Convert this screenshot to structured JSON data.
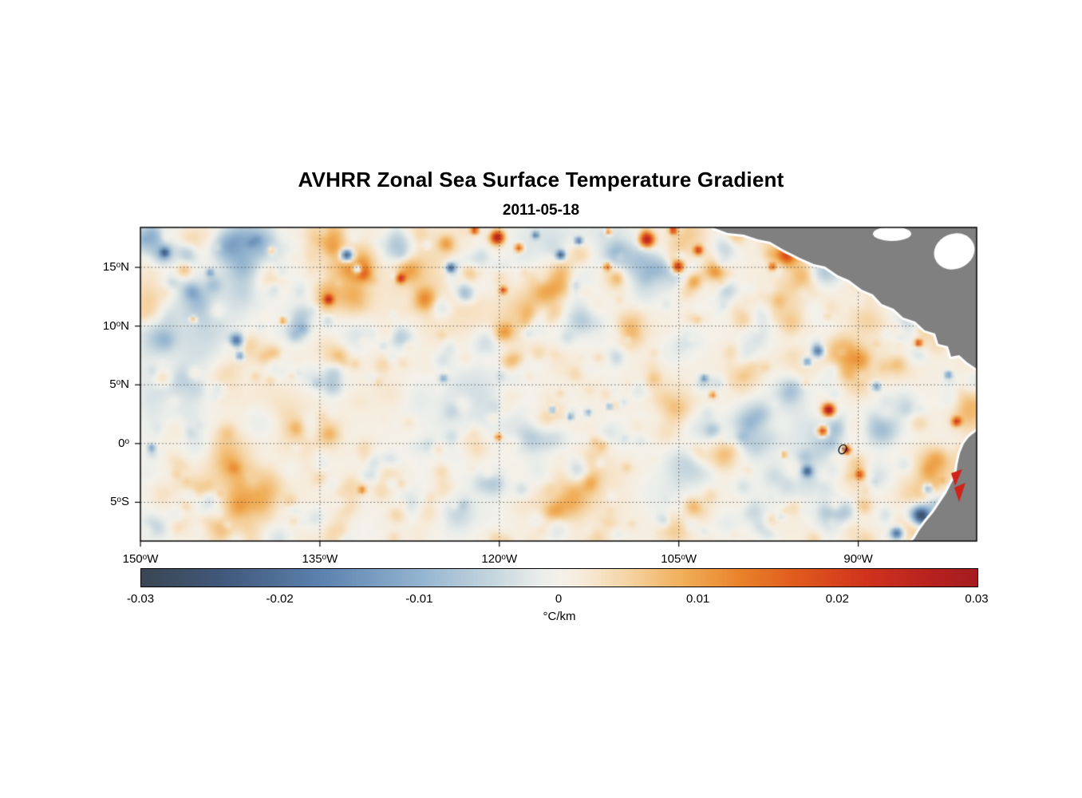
{
  "chart_data": {
    "type": "heatmap",
    "title": "AVHRR Zonal Sea Surface Temperature Gradient",
    "subtitle": "2011-05-18",
    "units": "°C/km",
    "variable": "zonal sea surface temperature gradient",
    "grid": "dotted",
    "land_color": "#808080",
    "background_value": 0.0008,
    "x_axis": {
      "min_lon_w": 150,
      "max_lon_w": 80.1,
      "ticks": [
        {
          "lon": 150,
          "text": "150",
          "hemi": "W"
        },
        {
          "lon": 135,
          "text": "135",
          "hemi": "W"
        },
        {
          "lon": 120,
          "text": "120",
          "hemi": "W"
        },
        {
          "lon": 105,
          "text": "105",
          "hemi": "W"
        },
        {
          "lon": 90,
          "text": "90",
          "hemi": "W"
        }
      ]
    },
    "y_axis": {
      "min_lat": -8.3,
      "max_lat": 18.4,
      "ticks": [
        {
          "lat": 15,
          "text": "15",
          "hemi": "N"
        },
        {
          "lat": 10,
          "text": "10",
          "hemi": "N"
        },
        {
          "lat": 5,
          "text": "5",
          "hemi": "N"
        },
        {
          "lat": 0,
          "text": "0",
          "hemi": ""
        },
        {
          "lat": -5,
          "text": "5",
          "hemi": "S"
        }
      ]
    },
    "colorbar": {
      "min": -0.03,
      "max": 0.03,
      "tick_labels": [
        "-0.03",
        "-0.02",
        "-0.01",
        "0",
        "0.01",
        "0.02",
        "0.03"
      ],
      "units": "°C/km",
      "stops": [
        {
          "v": -0.03,
          "c": "#3a4653"
        },
        {
          "v": -0.024,
          "c": "#41597c"
        },
        {
          "v": -0.017,
          "c": "#5c82ae"
        },
        {
          "v": -0.01,
          "c": "#93b4d0"
        },
        {
          "v": -0.005,
          "c": "#c3d4dd"
        },
        {
          "v": -0.0015,
          "c": "#e9edea"
        },
        {
          "v": 0,
          "c": "#f4f1ea"
        },
        {
          "v": 0.0015,
          "c": "#f6ecdc"
        },
        {
          "v": 0.005,
          "c": "#f5d3a2"
        },
        {
          "v": 0.009,
          "c": "#f0ad56"
        },
        {
          "v": 0.013,
          "c": "#e9822a"
        },
        {
          "v": 0.017,
          "c": "#e05a1d"
        },
        {
          "v": 0.022,
          "c": "#d0331d"
        },
        {
          "v": 0.027,
          "c": "#b5211f"
        },
        {
          "v": 0.03,
          "c": "#a51c20"
        }
      ]
    },
    "noise": {
      "seed": 20110518,
      "large": 70,
      "medium": 380,
      "small": 600
    },
    "features": [
      {
        "lon": 120.3,
        "lat": 17.7,
        "amp": 0.028,
        "r": 9
      },
      {
        "lon": 118.5,
        "lat": 16.8,
        "amp": 0.02,
        "r": 6
      },
      {
        "lon": 107.8,
        "lat": 17.5,
        "amp": 0.028,
        "r": 10
      },
      {
        "lon": 105.2,
        "lat": 15.2,
        "amp": 0.026,
        "r": 8
      },
      {
        "lon": 103.5,
        "lat": 16.6,
        "amp": 0.02,
        "r": 6
      },
      {
        "lon": 111.1,
        "lat": 15.2,
        "amp": 0.016,
        "r": 5
      },
      {
        "lon": 115.0,
        "lat": 16.2,
        "amp": -0.024,
        "r": 6
      },
      {
        "lon": 113.5,
        "lat": 17.4,
        "amp": -0.02,
        "r": 5
      },
      {
        "lon": 124.2,
        "lat": 15.1,
        "amp": -0.022,
        "r": 6
      },
      {
        "lon": 132.9,
        "lat": 16.2,
        "amp": -0.026,
        "r": 8
      },
      {
        "lon": 132.0,
        "lat": 15.0,
        "amp": -0.02,
        "r": 6
      },
      {
        "lon": 128.4,
        "lat": 14.2,
        "amp": 0.02,
        "r": 6
      },
      {
        "lon": 134.4,
        "lat": 12.4,
        "amp": 0.018,
        "r": 6
      },
      {
        "lon": 119.8,
        "lat": 13.2,
        "amp": 0.02,
        "r": 4
      },
      {
        "lon": 142.1,
        "lat": 8.9,
        "amp": -0.02,
        "r": 9
      },
      {
        "lon": 141.8,
        "lat": 7.6,
        "amp": -0.016,
        "r": 6
      },
      {
        "lon": 138.2,
        "lat": 10.6,
        "amp": 0.012,
        "r": 5
      },
      {
        "lon": 145.7,
        "lat": 10.7,
        "amp": 0.012,
        "r": 4
      },
      {
        "lon": 148.1,
        "lat": 16.4,
        "amp": -0.016,
        "r": 6
      },
      {
        "lon": 139.2,
        "lat": 16.6,
        "amp": 0.012,
        "r": 5
      },
      {
        "lon": 144.3,
        "lat": 14.7,
        "amp": -0.012,
        "r": 5
      },
      {
        "lon": 122.2,
        "lat": 18.3,
        "amp": 0.02,
        "r": 5
      },
      {
        "lon": 117.1,
        "lat": 17.9,
        "amp": -0.018,
        "r": 4
      },
      {
        "lon": 111.0,
        "lat": 18.2,
        "amp": 0.016,
        "r": 4
      },
      {
        "lon": 105.6,
        "lat": 18.3,
        "amp": 0.02,
        "r": 5
      },
      {
        "lon": 97.3,
        "lat": 15.2,
        "amp": 0.016,
        "r": 5
      },
      {
        "lon": 93.5,
        "lat": 8.0,
        "amp": -0.02,
        "r": 8
      },
      {
        "lon": 94.4,
        "lat": 7.1,
        "amp": -0.016,
        "r": 6
      },
      {
        "lon": 92.6,
        "lat": 3.0,
        "amp": 0.03,
        "r": 8
      },
      {
        "lon": 93.1,
        "lat": 1.2,
        "amp": 0.026,
        "r": 7
      },
      {
        "lon": 91.1,
        "lat": -0.4,
        "amp": 0.03,
        "r": 5
      },
      {
        "lon": 90.0,
        "lat": -2.5,
        "amp": 0.016,
        "r": 6
      },
      {
        "lon": 94.4,
        "lat": -2.2,
        "amp": -0.02,
        "r": 7
      },
      {
        "lon": 120.2,
        "lat": 0.7,
        "amp": 0.015,
        "r": 5
      },
      {
        "lon": 115.7,
        "lat": 3.0,
        "amp": -0.016,
        "r": 4
      },
      {
        "lon": 114.2,
        "lat": 2.4,
        "amp": -0.014,
        "r": 4
      },
      {
        "lon": 112.7,
        "lat": 2.8,
        "amp": -0.012,
        "r": 4
      },
      {
        "lon": 110.9,
        "lat": 3.3,
        "amp": -0.013,
        "r": 4
      },
      {
        "lon": 103.0,
        "lat": 5.7,
        "amp": -0.014,
        "r": 4
      },
      {
        "lon": 102.3,
        "lat": 4.3,
        "amp": 0.013,
        "r": 4
      },
      {
        "lon": 85.1,
        "lat": 8.7,
        "amp": 0.02,
        "r": 5
      },
      {
        "lon": 81.9,
        "lat": 2.0,
        "amp": 0.02,
        "r": 6
      },
      {
        "lon": 81.0,
        "lat": -3.7,
        "amp": 0.035,
        "r": 7
      },
      {
        "lon": 84.3,
        "lat": -3.7,
        "amp": -0.016,
        "r": 7
      },
      {
        "lon": 84.9,
        "lat": -6.0,
        "amp": -0.026,
        "r": 12
      },
      {
        "lon": 81.9,
        "lat": -7.1,
        "amp": -0.03,
        "r": 10
      },
      {
        "lon": 86.9,
        "lat": -7.5,
        "amp": -0.022,
        "r": 8
      },
      {
        "lon": 80.6,
        "lat": -1.4,
        "amp": -0.018,
        "r": 5
      },
      {
        "lon": 149.2,
        "lat": -0.2,
        "amp": -0.012,
        "r": 5
      },
      {
        "lon": 131.6,
        "lat": -3.8,
        "amp": 0.012,
        "r": 5
      },
      {
        "lon": 96.3,
        "lat": -0.8,
        "amp": 0.012,
        "r": 4
      },
      {
        "lon": 124.8,
        "lat": 5.7,
        "amp": -0.012,
        "r": 5
      },
      {
        "lon": 82.6,
        "lat": 6.0,
        "amp": -0.015,
        "r": 5
      },
      {
        "lon": 88.6,
        "lat": 5.0,
        "amp": -0.014,
        "r": 6
      }
    ]
  }
}
